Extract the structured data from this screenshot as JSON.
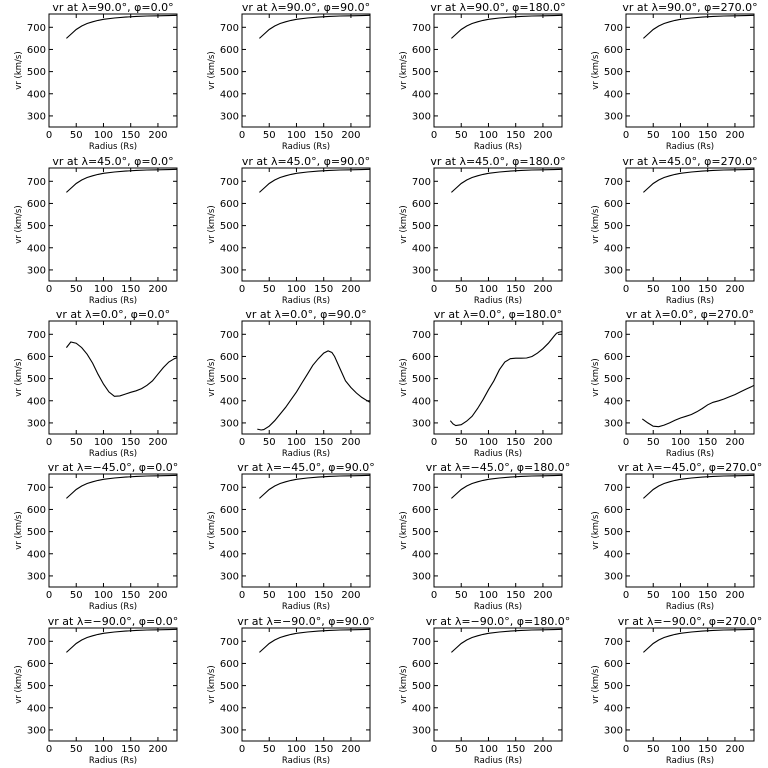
{
  "chart_data": {
    "type": "line",
    "layout": {
      "rows": 5,
      "cols": 4
    },
    "xlabel": "Radius (Rs)",
    "ylabel": "vr (km/s)",
    "xlim": [
      0,
      235
    ],
    "ylim": [
      250,
      760
    ],
    "xticks": [
      0,
      50,
      100,
      150,
      200
    ],
    "yticks": [
      300,
      400,
      500,
      600,
      700
    ],
    "line_color": "#000000",
    "panels": [
      {
        "title": "vr at λ=90.0°, φ=0.0°",
        "x": [
          32,
          40,
          50,
          60,
          70,
          80,
          90,
          100,
          120,
          140,
          160,
          180,
          200,
          220,
          235
        ],
        "y": [
          650,
          668,
          690,
          706,
          717,
          725,
          731,
          736,
          742,
          746,
          749,
          751,
          752,
          753,
          754
        ]
      },
      {
        "title": "vr at λ=90.0°, φ=90.0°",
        "x": [
          32,
          40,
          50,
          60,
          70,
          80,
          90,
          100,
          120,
          140,
          160,
          180,
          200,
          220,
          235
        ],
        "y": [
          650,
          668,
          690,
          706,
          717,
          725,
          731,
          736,
          742,
          746,
          749,
          751,
          752,
          753,
          754
        ]
      },
      {
        "title": "vr at λ=90.0°, φ=180.0°",
        "x": [
          32,
          40,
          50,
          60,
          70,
          80,
          90,
          100,
          120,
          140,
          160,
          180,
          200,
          220,
          235
        ],
        "y": [
          650,
          668,
          690,
          706,
          717,
          725,
          731,
          736,
          742,
          746,
          749,
          751,
          752,
          753,
          754
        ]
      },
      {
        "title": "vr at λ=90.0°, φ=270.0°",
        "x": [
          32,
          40,
          50,
          60,
          70,
          80,
          90,
          100,
          120,
          140,
          160,
          180,
          200,
          220,
          235
        ],
        "y": [
          650,
          668,
          690,
          706,
          717,
          725,
          731,
          736,
          742,
          746,
          749,
          751,
          752,
          753,
          754
        ]
      },
      {
        "title": "vr at λ=45.0°, φ=0.0°",
        "x": [
          32,
          40,
          50,
          60,
          70,
          80,
          90,
          100,
          120,
          140,
          160,
          180,
          200,
          220,
          235
        ],
        "y": [
          650,
          668,
          690,
          706,
          717,
          725,
          731,
          736,
          742,
          746,
          749,
          751,
          752,
          753,
          754
        ]
      },
      {
        "title": "vr at λ=45.0°, φ=90.0°",
        "x": [
          32,
          40,
          50,
          60,
          70,
          80,
          90,
          100,
          120,
          140,
          160,
          180,
          200,
          220,
          235
        ],
        "y": [
          650,
          668,
          690,
          706,
          717,
          725,
          731,
          736,
          742,
          746,
          749,
          751,
          752,
          753,
          754
        ]
      },
      {
        "title": "vr at λ=45.0°, φ=180.0°",
        "x": [
          32,
          40,
          50,
          60,
          70,
          80,
          90,
          100,
          120,
          140,
          160,
          180,
          200,
          220,
          235
        ],
        "y": [
          650,
          668,
          690,
          706,
          717,
          725,
          731,
          736,
          742,
          746,
          749,
          751,
          752,
          753,
          754
        ]
      },
      {
        "title": "vr at λ=45.0°, φ=270.0°",
        "x": [
          32,
          40,
          50,
          60,
          70,
          80,
          90,
          100,
          120,
          140,
          160,
          180,
          200,
          220,
          235
        ],
        "y": [
          650,
          668,
          690,
          706,
          717,
          725,
          731,
          736,
          742,
          746,
          749,
          751,
          752,
          753,
          754
        ]
      },
      {
        "title": "vr at λ=0.0°, φ=0.0°",
        "x": [
          32,
          40,
          50,
          60,
          70,
          80,
          90,
          100,
          110,
          120,
          130,
          140,
          150,
          160,
          170,
          180,
          190,
          200,
          210,
          220,
          230,
          235
        ],
        "y": [
          640,
          665,
          660,
          640,
          610,
          570,
          520,
          475,
          440,
          420,
          422,
          430,
          438,
          445,
          455,
          470,
          490,
          520,
          550,
          575,
          590,
          595
        ]
      },
      {
        "title": "vr at λ=0.0°, φ=90.0°",
        "x": [
          28,
          35,
          40,
          50,
          60,
          70,
          80,
          90,
          100,
          110,
          120,
          130,
          140,
          150,
          158,
          165,
          170,
          180,
          190,
          200,
          210,
          220,
          230,
          235
        ],
        "y": [
          272,
          268,
          270,
          285,
          310,
          340,
          370,
          405,
          440,
          480,
          520,
          560,
          590,
          615,
          625,
          618,
          600,
          545,
          490,
          460,
          435,
          415,
          400,
          393
        ]
      },
      {
        "title": "vr at λ=0.0°, φ=180.0°",
        "x": [
          30,
          35,
          40,
          50,
          60,
          70,
          80,
          90,
          100,
          110,
          120,
          130,
          140,
          150,
          160,
          170,
          180,
          190,
          200,
          210,
          220,
          225,
          230,
          235
        ],
        "y": [
          310,
          295,
          288,
          292,
          308,
          330,
          365,
          405,
          450,
          490,
          540,
          575,
          590,
          592,
          592,
          593,
          600,
          615,
          635,
          660,
          690,
          705,
          710,
          712
        ]
      },
      {
        "title": "vr at λ=0.0°, φ=270.0°",
        "x": [
          30,
          40,
          50,
          60,
          70,
          80,
          90,
          100,
          110,
          120,
          130,
          140,
          150,
          160,
          170,
          180,
          190,
          200,
          210,
          220,
          230,
          235
        ],
        "y": [
          318,
          300,
          285,
          283,
          290,
          300,
          312,
          322,
          330,
          338,
          350,
          365,
          382,
          393,
          400,
          408,
          418,
          428,
          440,
          452,
          463,
          470
        ]
      },
      {
        "title": "vr at λ=−45.0°, φ=0.0°",
        "x": [
          32,
          40,
          50,
          60,
          70,
          80,
          90,
          100,
          120,
          140,
          160,
          180,
          200,
          220,
          235
        ],
        "y": [
          650,
          668,
          690,
          706,
          717,
          725,
          731,
          736,
          742,
          746,
          749,
          751,
          752,
          753,
          754
        ]
      },
      {
        "title": "vr at λ=−45.0°, φ=90.0°",
        "x": [
          32,
          40,
          50,
          60,
          70,
          80,
          90,
          100,
          120,
          140,
          160,
          180,
          200,
          220,
          235
        ],
        "y": [
          650,
          668,
          690,
          706,
          717,
          725,
          731,
          736,
          742,
          746,
          749,
          751,
          752,
          753,
          754
        ]
      },
      {
        "title": "vr at λ=−45.0°, φ=180.0°",
        "x": [
          32,
          40,
          50,
          60,
          70,
          80,
          90,
          100,
          120,
          140,
          160,
          180,
          200,
          220,
          235
        ],
        "y": [
          650,
          668,
          690,
          706,
          717,
          725,
          731,
          736,
          742,
          746,
          749,
          751,
          752,
          753,
          754
        ]
      },
      {
        "title": "vr at λ=−45.0°, φ=270.0°",
        "x": [
          32,
          40,
          50,
          60,
          70,
          80,
          90,
          100,
          120,
          140,
          160,
          180,
          200,
          220,
          235
        ],
        "y": [
          650,
          668,
          690,
          706,
          717,
          725,
          731,
          736,
          742,
          746,
          749,
          751,
          752,
          753,
          754
        ]
      },
      {
        "title": "vr at λ=−90.0°, φ=0.0°",
        "x": [
          32,
          40,
          50,
          60,
          70,
          80,
          90,
          100,
          120,
          140,
          160,
          180,
          200,
          220,
          235
        ],
        "y": [
          650,
          668,
          690,
          706,
          717,
          725,
          731,
          736,
          742,
          746,
          749,
          751,
          752,
          753,
          754
        ]
      },
      {
        "title": "vr at λ=−90.0°, φ=90.0°",
        "x": [
          32,
          40,
          50,
          60,
          70,
          80,
          90,
          100,
          120,
          140,
          160,
          180,
          200,
          220,
          235
        ],
        "y": [
          650,
          668,
          690,
          706,
          717,
          725,
          731,
          736,
          742,
          746,
          749,
          751,
          752,
          753,
          754
        ]
      },
      {
        "title": "vr at λ=−90.0°, φ=180.0°",
        "x": [
          32,
          40,
          50,
          60,
          70,
          80,
          90,
          100,
          120,
          140,
          160,
          180,
          200,
          220,
          235
        ],
        "y": [
          650,
          668,
          690,
          706,
          717,
          725,
          731,
          736,
          742,
          746,
          749,
          751,
          752,
          753,
          754
        ]
      },
      {
        "title": "vr at λ=−90.0°, φ=270.0°",
        "x": [
          32,
          40,
          50,
          60,
          70,
          80,
          90,
          100,
          120,
          140,
          160,
          180,
          200,
          220,
          235
        ],
        "y": [
          650,
          668,
          690,
          706,
          717,
          725,
          731,
          736,
          742,
          746,
          749,
          751,
          752,
          753,
          754
        ]
      }
    ]
  }
}
